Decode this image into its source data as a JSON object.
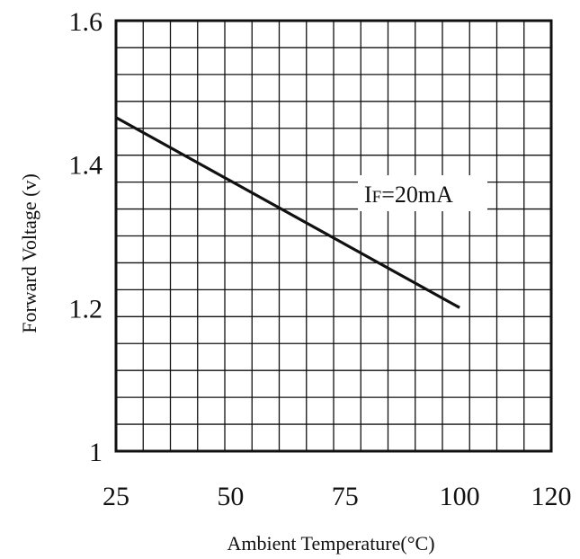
{
  "chart_data": {
    "type": "line",
    "title": "",
    "xlabel": "Ambient Temperature(°C)",
    "ylabel": "Forward Voltage (v)",
    "xlim": [
      25,
      120
    ],
    "ylim": [
      1.0,
      1.6
    ],
    "x_ticks": [
      "25",
      "50",
      "75",
      "100",
      "120"
    ],
    "y_ticks": [
      "1",
      "1.2",
      "1.4",
      "1.6"
    ],
    "grid": true,
    "series": [
      {
        "x": [
          25,
          100
        ],
        "y": [
          1.465,
          1.2
        ]
      }
    ],
    "annotation": {
      "main": "I",
      "sub": "F",
      "rest": "=20mA"
    },
    "colors": {
      "line": "#111111",
      "grid": "#111111",
      "background": "#ffffff"
    }
  }
}
